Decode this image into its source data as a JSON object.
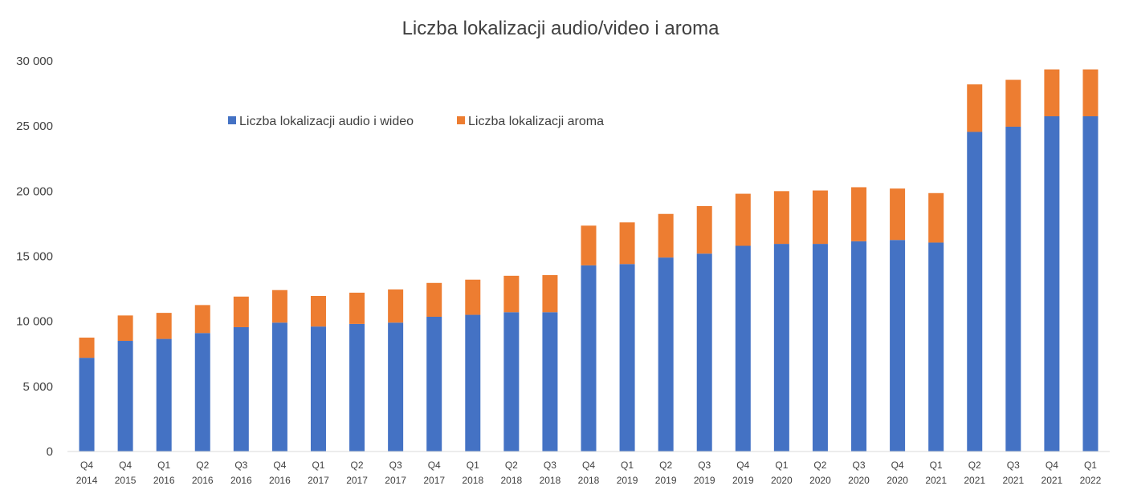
{
  "chart_data": {
    "type": "bar",
    "stacked": true,
    "title": "Liczba lokalizacji audio/video i aroma",
    "xlabel": "",
    "ylabel": "",
    "ylim": [
      0,
      30000
    ],
    "yticks": [
      {
        "value": 0,
        "label": "0"
      },
      {
        "value": 5000,
        "label": "5 000"
      },
      {
        "value": 10000,
        "label": "10 000"
      },
      {
        "value": 15000,
        "label": "15 000"
      },
      {
        "value": 20000,
        "label": "20 000"
      },
      {
        "value": 25000,
        "label": "25 000"
      },
      {
        "value": 30000,
        "label": "30 000"
      }
    ],
    "grid": false,
    "legend_position": "top-left",
    "categories": [
      [
        "Q4",
        "2014"
      ],
      [
        "Q4",
        "2015"
      ],
      [
        "Q1",
        "2016"
      ],
      [
        "Q2",
        "2016"
      ],
      [
        "Q3",
        "2016"
      ],
      [
        "Q4",
        "2016"
      ],
      [
        "Q1",
        "2017"
      ],
      [
        "Q2",
        "2017"
      ],
      [
        "Q3",
        "2017"
      ],
      [
        "Q4",
        "2017"
      ],
      [
        "Q1",
        "2018"
      ],
      [
        "Q2",
        "2018"
      ],
      [
        "Q3",
        "2018"
      ],
      [
        "Q4",
        "2018"
      ],
      [
        "Q1",
        "2019"
      ],
      [
        "Q2",
        "2019"
      ],
      [
        "Q3",
        "2019"
      ],
      [
        "Q4",
        "2019"
      ],
      [
        "Q1",
        "2020"
      ],
      [
        "Q2",
        "2020"
      ],
      [
        "Q3",
        "2020"
      ],
      [
        "Q4",
        "2020"
      ],
      [
        "Q1",
        "2021"
      ],
      [
        "Q2",
        "2021"
      ],
      [
        "Q3",
        "2021"
      ],
      [
        "Q4",
        "2021"
      ],
      [
        "Q1",
        "2022"
      ]
    ],
    "series": [
      {
        "name": "Liczba lokalizacji audio i wideo",
        "color": "#4472C4",
        "values": [
          7200,
          8500,
          8650,
          9100,
          9550,
          9900,
          9600,
          9800,
          9900,
          10350,
          10500,
          10700,
          10700,
          14300,
          14400,
          14900,
          15200,
          15800,
          15950,
          15950,
          16150,
          16250,
          16050,
          24550,
          24950,
          25750,
          25750
        ]
      },
      {
        "name": "Liczba lokalizacji aroma",
        "color": "#ED7D31",
        "values": [
          1550,
          1950,
          2000,
          2150,
          2350,
          2500,
          2350,
          2400,
          2550,
          2600,
          2700,
          2800,
          2850,
          3050,
          3200,
          3350,
          3650,
          4000,
          4050,
          4100,
          4150,
          3950,
          3800,
          3650,
          3600,
          3600,
          3600
        ]
      }
    ]
  }
}
